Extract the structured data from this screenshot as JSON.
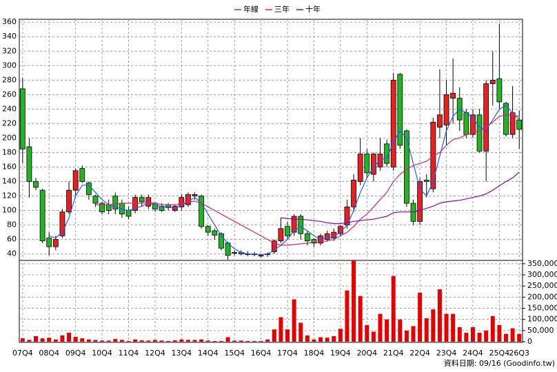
{
  "chart_data": {
    "type": "candlestick",
    "categories": [
      "07Q4",
      null,
      null,
      null,
      "08Q4",
      null,
      null,
      null,
      "09Q4",
      null,
      null,
      null,
      "10Q4",
      null,
      null,
      null,
      "11Q4",
      null,
      null,
      null,
      "12Q4",
      null,
      null,
      null,
      "13Q4",
      null,
      null,
      null,
      "14Q4",
      null,
      null,
      null,
      "15Q4",
      null,
      null,
      null,
      "16Q4",
      null,
      null,
      null,
      "17Q4",
      null,
      null,
      null,
      "18Q4",
      null,
      null,
      null,
      "19Q4",
      null,
      null,
      null,
      "20Q4",
      null,
      null,
      null,
      "21Q4",
      null,
      null,
      null,
      "22Q4",
      null,
      null,
      null,
      "23Q4",
      null,
      null,
      null,
      "24Q4",
      null,
      null,
      null,
      "25Q4",
      null,
      null,
      "26Q3"
    ],
    "open": [
      268,
      188,
      140,
      128,
      62,
      50,
      65,
      98,
      128,
      158,
      138,
      120,
      110,
      108,
      120,
      110,
      100,
      100,
      118,
      106,
      110,
      106,
      108,
      100,
      105,
      108,
      120,
      120,
      78,
      72,
      68,
      55,
      42,
      42,
      40,
      40,
      38,
      39,
      43,
      58,
      78,
      70,
      92,
      68,
      60,
      55,
      60,
      62,
      68,
      80,
      105,
      140,
      178,
      150,
      160,
      192,
      160,
      288,
      210,
      110,
      85,
      142,
      130,
      215,
      218,
      255,
      255,
      235,
      205,
      232,
      182,
      275,
      282,
      248,
      205,
      225
    ],
    "high": [
      283,
      200,
      145,
      130,
      70,
      65,
      102,
      140,
      158,
      162,
      140,
      122,
      112,
      115,
      125,
      115,
      105,
      122,
      122,
      122,
      112,
      110,
      110,
      108,
      122,
      125,
      125,
      122,
      80,
      75,
      70,
      57,
      45,
      45,
      44,
      43,
      40,
      42,
      60,
      90,
      85,
      95,
      95,
      72,
      62,
      68,
      72,
      75,
      80,
      115,
      150,
      200,
      185,
      180,
      200,
      198,
      290,
      290,
      212,
      115,
      145,
      150,
      228,
      295,
      280,
      310,
      270,
      240,
      240,
      240,
      280,
      320,
      358,
      250,
      272,
      238
    ],
    "low": [
      165,
      118,
      128,
      55,
      38,
      45,
      62,
      95,
      118,
      138,
      115,
      105,
      95,
      95,
      95,
      90,
      88,
      96,
      105,
      102,
      98,
      98,
      100,
      98,
      100,
      105,
      115,
      75,
      65,
      60,
      45,
      32,
      38,
      38,
      37,
      37,
      35,
      36,
      40,
      55,
      60,
      65,
      60,
      52,
      50,
      52,
      57,
      58,
      65,
      75,
      98,
      135,
      145,
      140,
      155,
      160,
      155,
      185,
      105,
      80,
      80,
      118,
      125,
      200,
      190,
      220,
      210,
      200,
      200,
      180,
      140,
      245,
      240,
      202,
      200,
      185
    ],
    "close": [
      185,
      140,
      132,
      58,
      50,
      60,
      98,
      128,
      155,
      140,
      122,
      110,
      98,
      100,
      102,
      95,
      92,
      118,
      112,
      118,
      102,
      100,
      104,
      106,
      118,
      122,
      122,
      78,
      70,
      66,
      48,
      38,
      41,
      40,
      40,
      39,
      38,
      40,
      58,
      75,
      65,
      92,
      68,
      58,
      55,
      65,
      68,
      70,
      78,
      105,
      142,
      178,
      152,
      178,
      178,
      165,
      280,
      190,
      110,
      85,
      140,
      140,
      222,
      232,
      260,
      262,
      225,
      205,
      232,
      182,
      275,
      280,
      250,
      205,
      235,
      212
    ],
    "up_color": "#e82020",
    "down_color": "#22b422",
    "ylim": [
      33,
      364
    ],
    "yticks": [
      40,
      60,
      80,
      100,
      120,
      140,
      160,
      180,
      200,
      220,
      240,
      260,
      280,
      300,
      320,
      340,
      360
    ],
    "lines": [
      {
        "name": "年線",
        "color": "#1e5cff",
        "values": [
          null,
          null,
          null,
          null,
          65,
          62,
          70,
          90,
          120,
          135,
          135,
          125,
          115,
          108,
          105,
          102,
          100,
          103,
          106,
          110,
          108,
          105,
          105,
          103,
          107,
          112,
          118,
          110,
          95,
          80,
          65,
          55,
          47,
          42,
          40,
          40,
          39,
          40,
          45,
          52,
          60,
          72,
          78,
          72,
          65,
          60,
          62,
          64,
          70,
          80,
          100,
          125,
          145,
          160,
          170,
          172,
          195,
          210,
          200,
          165,
          130,
          120,
          140,
          175,
          210,
          230,
          240,
          235,
          228,
          215,
          212,
          225,
          240,
          245,
          235,
          225
        ]
      },
      {
        "name": "三年",
        "color": "#e0206a",
        "values": [
          null,
          null,
          null,
          null,
          null,
          null,
          null,
          null,
          null,
          null,
          null,
          108,
          108,
          108,
          109,
          110,
          110,
          110,
          110,
          111,
          110,
          108,
          108,
          108,
          109,
          112,
          113,
          110,
          105,
          100,
          95,
          90,
          85,
          80,
          75,
          70,
          65,
          60,
          55,
          52,
          52,
          53,
          54,
          55,
          56,
          57,
          58,
          60,
          65,
          70,
          78,
          88,
          95,
          105,
          115,
          125,
          140,
          150,
          157,
          162,
          165,
          168,
          175,
          180,
          190,
          198,
          200,
          205,
          208,
          210,
          215,
          222,
          230,
          232,
          232,
          230
        ]
      },
      {
        "name": "十年",
        "color": "#8a00c8",
        "values": [
          null,
          null,
          null,
          null,
          null,
          null,
          null,
          null,
          null,
          null,
          null,
          null,
          null,
          null,
          null,
          null,
          null,
          null,
          null,
          null,
          null,
          null,
          null,
          null,
          null,
          null,
          null,
          null,
          null,
          null,
          null,
          null,
          null,
          null,
          null,
          null,
          null,
          null,
          null,
          90,
          89,
          88,
          88,
          87,
          86,
          85,
          83,
          82,
          82,
          83,
          85,
          86,
          87,
          88,
          90,
          92,
          97,
          98,
          98,
          98,
          100,
          103,
          106,
          110,
          112,
          113,
          114,
          116,
          118,
          120,
          123,
          128,
          134,
          140,
          145,
          153
        ]
      }
    ],
    "volume": {
      "color": "#e60000",
      "axis": "y2",
      "values": [
        15000,
        8000,
        25000,
        15000,
        18000,
        10000,
        28000,
        40000,
        22000,
        15000,
        10000,
        8000,
        5000,
        5000,
        12000,
        8000,
        3000,
        10000,
        6000,
        5000,
        8000,
        5000,
        3000,
        6000,
        10000,
        8000,
        8000,
        10000,
        5000,
        3000,
        3000,
        20000,
        5000,
        5000,
        3000,
        3000,
        3000,
        10000,
        55000,
        110000,
        55000,
        190000,
        85000,
        28000,
        10000,
        20000,
        18000,
        25000,
        58000,
        230000,
        365000,
        205000,
        75000,
        45000,
        125000,
        100000,
        295000,
        100000,
        50000,
        70000,
        220000,
        105000,
        145000,
        235000,
        125000,
        125000,
        65000,
        40000,
        65000,
        40000,
        50000,
        115000,
        75000,
        35000,
        60000,
        35000
      ]
    },
    "y2lim": [
      0,
      365000
    ],
    "y2ticks": [
      0,
      {
        "value": 50000,
        "label": "50,000"
      },
      {
        "value": 100000,
        "label": "100,000"
      },
      {
        "value": 150000,
        "label": "150,000"
      },
      {
        "value": 200000,
        "label": "200,000"
      },
      {
        "value": 250000,
        "label": "250,000"
      },
      {
        "value": 300000,
        "label": "300,000"
      },
      {
        "value": 350000,
        "label": "350,000"
      }
    ],
    "grid": true,
    "legend_position": "top",
    "footer": "資料日期: 09/16 (Goodinfo.tw)"
  }
}
